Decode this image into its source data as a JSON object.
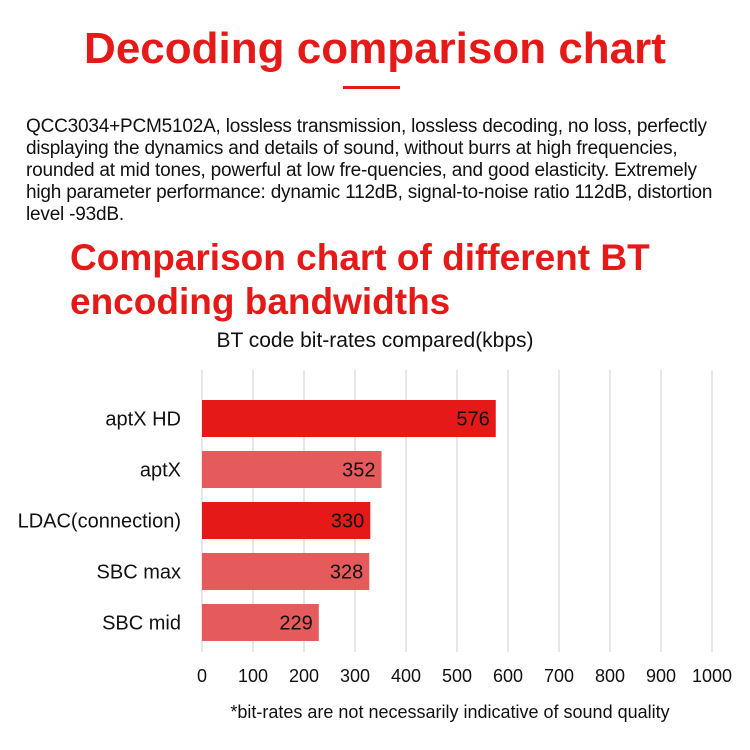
{
  "header": {
    "title": "Decoding comparison chart"
  },
  "description": "QCC3034+PCM5102A, lossless transmission, lossless decoding, no loss, perfectly displaying the dynamics and details of sound, without burrs at high frequencies, rounded at mid tones, powerful at low fre-quencies, and good elasticity. Extremely high parameter performance: dynamic 112dB, signal-to-noise ratio 112dB, distortion level -93dB.",
  "section": {
    "title": "Comparison chart of different BT encoding bandwidths"
  },
  "colors": {
    "accent": "#e61919",
    "bar_dark": "#e61919",
    "bar_light": "#e55a5a"
  },
  "chart_data": {
    "type": "bar",
    "orientation": "horizontal",
    "title": "BT code bit-rates compared(kbps)",
    "categories": [
      "aptX HD",
      "aptX",
      "LDAC(connection)",
      "SBC max",
      "SBC mid"
    ],
    "values": [
      576,
      352,
      330,
      328,
      229
    ],
    "data_labels": [
      "576",
      "352",
      "330",
      "328",
      "229"
    ],
    "bar_colors": [
      "#e61919",
      "#e55a5a",
      "#e61919",
      "#e55a5a",
      "#e55a5a"
    ],
    "xlim": [
      0,
      1000
    ],
    "x_ticks": [
      0,
      100,
      200,
      300,
      400,
      500,
      600,
      700,
      800,
      900,
      1000
    ],
    "grid": true,
    "footnote": "*bit-rates are not necessarily indicative of sound quality"
  }
}
